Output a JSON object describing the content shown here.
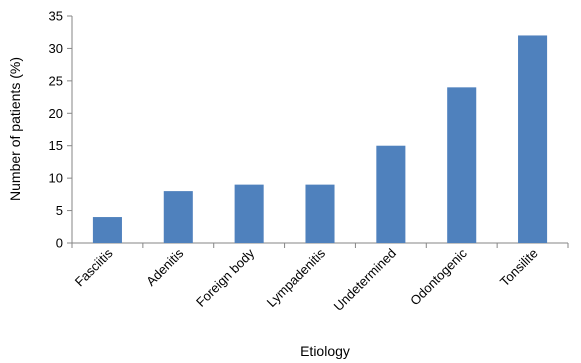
{
  "chart_data": {
    "type": "bar",
    "title": "",
    "xlabel": "Etiology",
    "ylabel": "Number of patients (%)",
    "categories": [
      "Fasciitis",
      "Adenitis",
      "Foreign body",
      "Lympadenitis",
      "Undetermined",
      "Odontogenic",
      "Tonsilite"
    ],
    "values": [
      4,
      8,
      9,
      9,
      15,
      24,
      32
    ],
    "ylim": [
      0,
      35
    ],
    "yticks": [
      0,
      5,
      10,
      15,
      20,
      25,
      30,
      35
    ],
    "grid": false,
    "legend": "none",
    "bar_color": "#4f81bd",
    "axis_color": "#868686"
  }
}
